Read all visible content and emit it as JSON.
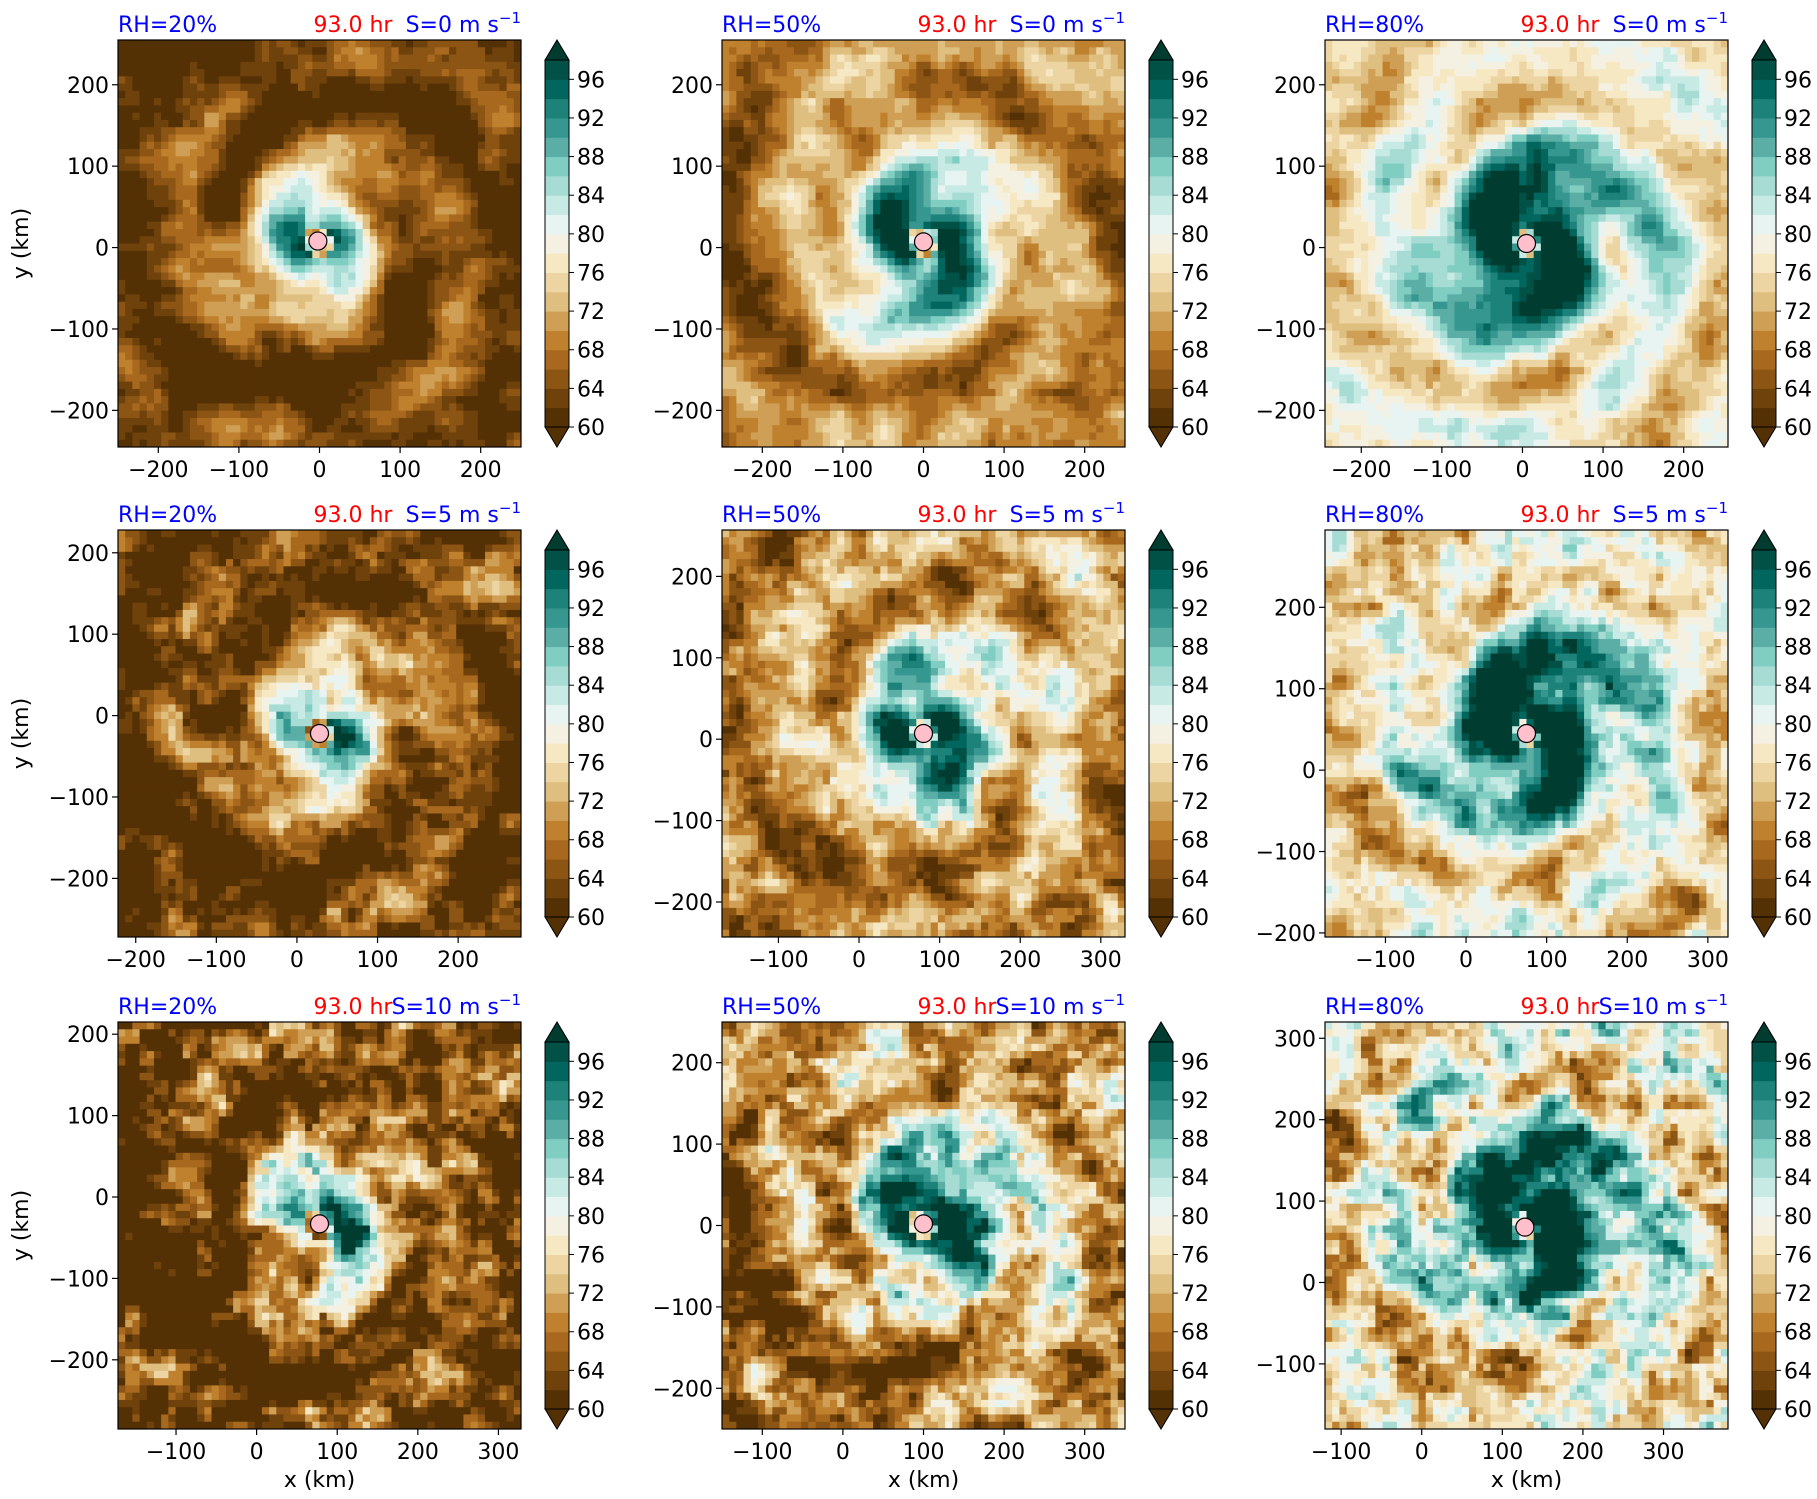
{
  "colorbar": {
    "tick_labels": [
      "60",
      "64",
      "68",
      "72",
      "76",
      "80",
      "84",
      "88",
      "92",
      "96"
    ],
    "levels": [
      60,
      62,
      64,
      66,
      68,
      70,
      72,
      74,
      76,
      78,
      80,
      82,
      84,
      86,
      88,
      90,
      92,
      94,
      96,
      98
    ],
    "colors": [
      "#543005",
      "#6f420c",
      "#8c5514",
      "#a8691e",
      "#bf812d",
      "#cf9f56",
      "#dfbf7f",
      "#ecd5a3",
      "#f6e8c3",
      "#f5f1e2",
      "#e8f4f1",
      "#c7eae5",
      "#a6dcd3",
      "#80cdc1",
      "#5aaea5",
      "#35978f",
      "#1d8279",
      "#01665e",
      "#015147",
      "#003c30"
    ],
    "extend": "both"
  },
  "chart_data": [
    {
      "type": "heatmap",
      "title_left": "RH=20%",
      "title_center": "93.0 hr",
      "title_right_prefix": "S=0 m s",
      "title_right_sup": "−1",
      "xlabel": "",
      "ylabel": "y (km)",
      "xlim": [
        -250,
        250
      ],
      "ylim": [
        -245,
        255
      ],
      "x_ticks": [
        -200,
        -100,
        0,
        100,
        200
      ],
      "x_tick_labels": [
        "−200",
        "−100",
        "0",
        "100",
        "200"
      ],
      "y_ticks": [
        -200,
        -100,
        0,
        100,
        200
      ],
      "y_tick_labels": [
        "−200",
        "−100",
        "0",
        "100",
        "200"
      ],
      "center_marker": [
        -2,
        8
      ],
      "pattern": {
        "rh": 20,
        "shear": 0
      }
    },
    {
      "type": "heatmap",
      "title_left": "RH=50%",
      "title_center": "93.0 hr",
      "title_right_prefix": "S=0 m s",
      "title_right_sup": "−1",
      "xlabel": "",
      "ylabel": "",
      "xlim": [
        -250,
        250
      ],
      "ylim": [
        -245,
        255
      ],
      "x_ticks": [
        -200,
        -100,
        0,
        100,
        200
      ],
      "x_tick_labels": [
        "−200",
        "−100",
        "0",
        "100",
        "200"
      ],
      "y_ticks": [
        -200,
        -100,
        0,
        100,
        200
      ],
      "y_tick_labels": [
        "−200",
        "−100",
        "0",
        "100",
        "200"
      ],
      "center_marker": [
        0,
        7
      ],
      "pattern": {
        "rh": 50,
        "shear": 0
      }
    },
    {
      "type": "heatmap",
      "title_left": "RH=80%",
      "title_center": "93.0 hr",
      "title_right_prefix": "S=0 m s",
      "title_right_sup": "−1",
      "xlabel": "",
      "ylabel": "",
      "xlim": [
        -245,
        255
      ],
      "ylim": [
        -245,
        255
      ],
      "x_ticks": [
        -200,
        -100,
        0,
        100,
        200
      ],
      "x_tick_labels": [
        "−200",
        "−100",
        "0",
        "100",
        "200"
      ],
      "y_ticks": [
        -200,
        -100,
        0,
        100,
        200
      ],
      "y_tick_labels": [
        "−200",
        "−100",
        "0",
        "100",
        "200"
      ],
      "center_marker": [
        5,
        5
      ],
      "pattern": {
        "rh": 80,
        "shear": 0
      }
    },
    {
      "type": "heatmap",
      "title_left": "RH=20%",
      "title_center": "93.0 hr",
      "title_right_prefix": "S=5 m s",
      "title_right_sup": "−1",
      "xlabel": "",
      "ylabel": "y (km)",
      "xlim": [
        -222,
        278
      ],
      "ylim": [
        -272,
        228
      ],
      "x_ticks": [
        -200,
        -100,
        0,
        100,
        200
      ],
      "x_tick_labels": [
        "−200",
        "−100",
        "0",
        "100",
        "200"
      ],
      "y_ticks": [
        -200,
        -100,
        0,
        100,
        200
      ],
      "y_tick_labels": [
        "−200",
        "−100",
        "0",
        "100",
        "200"
      ],
      "center_marker": [
        28,
        -22
      ],
      "pattern": {
        "rh": 20,
        "shear": 5
      }
    },
    {
      "type": "heatmap",
      "title_left": "RH=50%",
      "title_center": "93.0 hr",
      "title_right_prefix": "S=5 m s",
      "title_right_sup": "−1",
      "xlabel": "",
      "ylabel": "",
      "xlim": [
        -170,
        330
      ],
      "ylim": [
        -243,
        257
      ],
      "x_ticks": [
        -100,
        0,
        100,
        200,
        300
      ],
      "x_tick_labels": [
        "−100",
        "0",
        "100",
        "200",
        "300"
      ],
      "y_ticks": [
        -200,
        -100,
        0,
        100,
        200
      ],
      "y_tick_labels": [
        "−200",
        "−100",
        "0",
        "100",
        "200"
      ],
      "center_marker": [
        80,
        7
      ],
      "pattern": {
        "rh": 50,
        "shear": 5
      }
    },
    {
      "type": "heatmap",
      "title_left": "RH=80%",
      "title_center": "93.0 hr",
      "title_right_prefix": "S=5 m s",
      "title_right_sup": "−1",
      "xlabel": "",
      "ylabel": "",
      "xlim": [
        -175,
        325
      ],
      "ylim": [
        -205,
        295
      ],
      "x_ticks": [
        -100,
        0,
        100,
        200,
        300
      ],
      "x_tick_labels": [
        "−100",
        "0",
        "100",
        "200",
        "300"
      ],
      "y_ticks": [
        -200,
        -100,
        0,
        100,
        200
      ],
      "y_tick_labels": [
        "−200",
        "−100",
        "0",
        "100",
        "200"
      ],
      "center_marker": [
        75,
        45
      ],
      "pattern": {
        "rh": 80,
        "shear": 5
      }
    },
    {
      "type": "heatmap",
      "title_left": "RH=20%",
      "title_center": "93.0 hr",
      "title_right_prefix": "S=10 m s",
      "title_right_sup": "−1",
      "xlabel": "x (km)",
      "ylabel": "y (km)",
      "xlim": [
        -172,
        328
      ],
      "ylim": [
        -285,
        215
      ],
      "x_ticks": [
        -100,
        0,
        100,
        200,
        300
      ],
      "x_tick_labels": [
        "−100",
        "0",
        "100",
        "200",
        "300"
      ],
      "y_ticks": [
        -200,
        -100,
        0,
        100,
        200
      ],
      "y_tick_labels": [
        "−200",
        "−100",
        "0",
        "100",
        "200"
      ],
      "center_marker": [
        78,
        -33
      ],
      "pattern": {
        "rh": 20,
        "shear": 10
      }
    },
    {
      "type": "heatmap",
      "title_left": "RH=50%",
      "title_center": "93.0 hr",
      "title_right_prefix": "S=10 m s",
      "title_right_sup": "−1",
      "xlabel": "x (km)",
      "ylabel": "",
      "xlim": [
        -150,
        350
      ],
      "ylim": [
        -250,
        250
      ],
      "x_ticks": [
        -100,
        0,
        100,
        200,
        300
      ],
      "x_tick_labels": [
        "−100",
        "0",
        "100",
        "200",
        "300"
      ],
      "y_ticks": [
        -200,
        -100,
        0,
        100,
        200
      ],
      "y_tick_labels": [
        "−200",
        "−100",
        "0",
        "100",
        "200"
      ],
      "center_marker": [
        100,
        2
      ],
      "pattern": {
        "rh": 50,
        "shear": 10
      }
    },
    {
      "type": "heatmap",
      "title_left": "RH=80%",
      "title_center": "93.0 hr",
      "title_right_prefix": "S=10 m s",
      "title_right_sup": "−1",
      "xlabel": "x (km)",
      "ylabel": "",
      "xlim": [
        -120,
        380
      ],
      "ylim": [
        -180,
        320
      ],
      "x_ticks": [
        -100,
        0,
        100,
        200,
        300
      ],
      "x_tick_labels": [
        "−100",
        "0",
        "100",
        "200",
        "300"
      ],
      "y_ticks": [
        -100,
        0,
        100,
        200,
        300
      ],
      "y_tick_labels": [
        "−100",
        "0",
        "100",
        "200",
        "300"
      ],
      "center_marker": [
        128,
        68
      ],
      "pattern": {
        "rh": 80,
        "shear": 10
      }
    }
  ]
}
